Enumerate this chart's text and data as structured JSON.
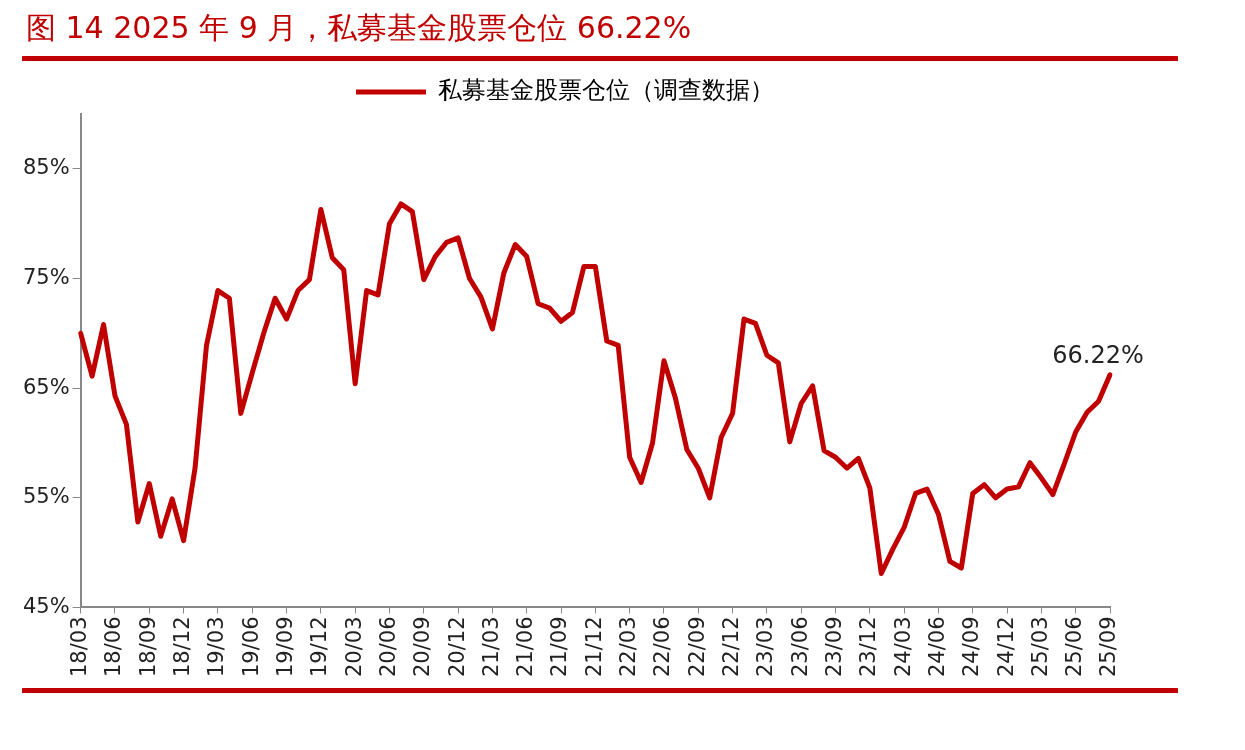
{
  "chart_data": {
    "type": "line",
    "title": "图 14 2025 年 9 月，私募基金股票仓位 66.22%",
    "categories": [
      "18/03",
      null,
      null,
      "18/06",
      null,
      null,
      "18/09",
      null,
      null,
      "18/12",
      null,
      null,
      "19/03",
      null,
      null,
      "19/06",
      null,
      null,
      "19/09",
      null,
      null,
      "19/12",
      null,
      null,
      "20/03",
      null,
      null,
      "20/06",
      null,
      null,
      "20/09",
      null,
      null,
      "20/12",
      null,
      null,
      "21/03",
      null,
      null,
      "21/06",
      null,
      null,
      "21/09",
      null,
      null,
      "21/12",
      null,
      null,
      "22/03",
      null,
      null,
      "22/06",
      null,
      null,
      "22/09",
      null,
      null,
      "22/12",
      null,
      null,
      "23/03",
      null,
      null,
      "23/06",
      null,
      null,
      "23/09",
      null,
      null,
      "23/12",
      null,
      null,
      "24/03",
      null,
      null,
      "24/06",
      null,
      null,
      "24/09",
      null,
      null,
      "24/12",
      null,
      null,
      "25/03",
      null,
      null,
      "25/06",
      null,
      null,
      "25/09"
    ],
    "series": [
      {
        "name": "私募基金股票仓位（调查数据）",
        "color": "#c00000",
        "values": [
          70.0,
          66.1,
          70.8,
          64.3,
          61.7,
          52.8,
          56.3,
          51.5,
          54.9,
          51.1,
          57.7,
          68.9,
          73.9,
          73.2,
          62.7,
          66.4,
          70.0,
          73.2,
          71.3,
          73.9,
          74.9,
          81.3,
          76.9,
          75.8,
          65.4,
          73.9,
          73.5,
          80.0,
          81.8,
          81.1,
          74.9,
          77.0,
          78.3,
          78.7,
          75.0,
          73.3,
          70.4,
          75.5,
          78.1,
          77.0,
          72.7,
          72.3,
          71.1,
          71.9,
          76.1,
          76.1,
          69.3,
          68.9,
          58.7,
          56.4,
          60.0,
          67.5,
          64.1,
          59.4,
          57.7,
          55.0,
          60.5,
          62.7,
          71.3,
          70.9,
          68.0,
          67.3,
          60.1,
          63.6,
          65.2,
          59.3,
          58.7,
          57.7,
          58.6,
          55.9,
          48.1,
          50.3,
          52.3,
          55.4,
          55.8,
          53.5,
          49.2,
          48.6,
          55.4,
          56.2,
          55.0,
          55.8,
          56.0,
          58.2,
          56.8,
          55.3,
          58.1,
          61.0,
          62.8,
          63.8,
          66.22
        ],
        "value_labels": [
          null,
          null,
          null,
          null,
          null,
          null,
          null,
          null,
          null,
          null,
          null,
          null,
          null,
          null,
          null,
          null,
          null,
          null,
          null,
          null,
          null,
          null,
          null,
          null,
          null,
          null,
          null,
          null,
          null,
          null,
          null,
          null,
          null,
          null,
          null,
          null,
          null,
          null,
          null,
          null,
          null,
          null,
          null,
          null,
          null,
          null,
          null,
          null,
          null,
          null,
          null,
          null,
          null,
          null,
          null,
          null,
          null,
          null,
          null,
          null,
          null,
          null,
          null,
          null,
          null,
          null,
          null,
          null,
          null,
          null,
          null,
          null,
          null,
          null,
          null,
          null,
          null,
          null,
          null,
          null,
          null,
          null,
          null,
          null,
          null,
          null,
          null,
          null,
          null,
          null,
          "66.22%"
        ]
      }
    ],
    "ylim": [
      45,
      90
    ],
    "yticks": [
      {
        "value": 45,
        "label": "45%"
      },
      {
        "value": 55,
        "label": "55%"
      },
      {
        "value": 65,
        "label": "65%"
      },
      {
        "value": 75,
        "label": "75%"
      },
      {
        "value": 85,
        "label": "85%"
      }
    ],
    "grid": false,
    "legend": "top",
    "marker": "none",
    "line_style": "solid"
  }
}
